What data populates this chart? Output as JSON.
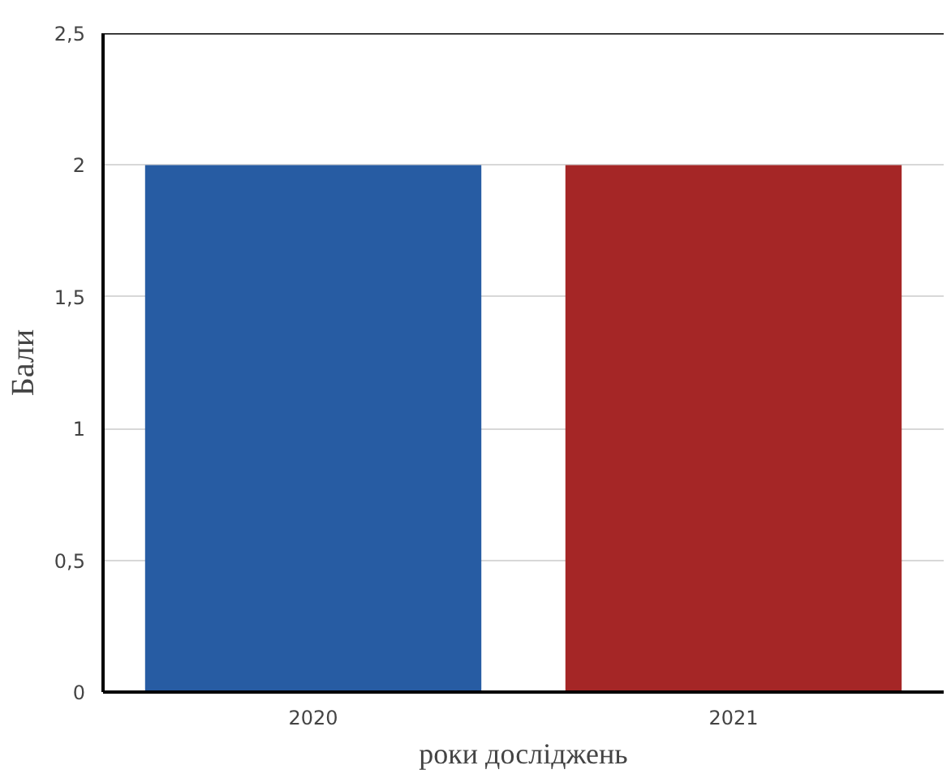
{
  "chart_data": {
    "type": "bar",
    "ylabel": "Бали",
    "xlabel": "роки досліджень",
    "categories": [
      "2020",
      "2021"
    ],
    "values": [
      2,
      2
    ],
    "colors": [
      "#275ca3",
      "#a52626"
    ],
    "ylim": [
      0,
      2.5
    ],
    "yticks": [
      0,
      {
        "value": 0.5,
        "label": "0,5"
      },
      1,
      {
        "value": 1.5,
        "label": "1,5"
      },
      2,
      {
        "value": 2.5,
        "label": "2,5"
      }
    ],
    "grid": "y"
  }
}
